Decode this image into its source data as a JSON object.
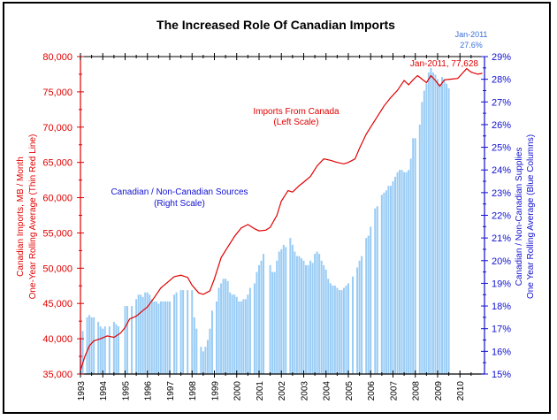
{
  "chart_data": {
    "type": "bar+line",
    "title": "The Increased Role Of Canadian Imports",
    "left_axis": {
      "label_line1": "Canadian Imports, MB / Month",
      "label_line2": "One-Year Rolling Average (Thin Red Line)",
      "range": [
        35000,
        80000
      ],
      "ticks": [
        "35,000",
        "40,000",
        "45,000",
        "50,000",
        "55,000",
        "60,000",
        "65,000",
        "70,000",
        "75,000",
        "80,000"
      ],
      "color": "#e00000"
    },
    "right_axis": {
      "label_line1": "Canadian / Non-Canadian Supplies",
      "label_line2": "One Year Rolling Average (Blue Columns)",
      "range": [
        15,
        29
      ],
      "ticks": [
        "15%",
        "16%",
        "17%",
        "18%",
        "19%",
        "20%",
        "21%",
        "22%",
        "23%",
        "24%",
        "25%",
        "26%",
        "27%",
        "28%",
        "29%"
      ],
      "color": "#1010d0"
    },
    "x_axis": {
      "range": [
        1993,
        2011.1
      ],
      "ticks": [
        "1993",
        "1994",
        "1995",
        "1996",
        "1997",
        "1998",
        "1999",
        "2000",
        "2001",
        "2002",
        "2003",
        "2004",
        "2005",
        "2006",
        "2007",
        "2008",
        "2009",
        "2010"
      ]
    },
    "annotations": {
      "line_label_1": "Imports From Canada",
      "line_label_2": "(Left Scale)",
      "bar_label_1": "Canadian / Non-Canadian Sources",
      "bar_label_2": "(Right Scale)",
      "line_end": "Jan-2011, 77,628",
      "bar_end_1": "Jan-2011",
      "bar_end_2": "27.6%"
    },
    "series": [
      {
        "name": "Imports From Canada (one-year rolling average)",
        "type": "line",
        "axis": "left",
        "color": "#e00000",
        "points": [
          [
            1993.0,
            35500
          ],
          [
            1993.2,
            37500
          ],
          [
            1993.4,
            39000
          ],
          [
            1993.6,
            39700
          ],
          [
            1993.9,
            40000
          ],
          [
            1994.2,
            40400
          ],
          [
            1994.5,
            40200
          ],
          [
            1994.8,
            40800
          ],
          [
            1995.0,
            41600
          ],
          [
            1995.2,
            42800
          ],
          [
            1995.5,
            43200
          ],
          [
            1995.8,
            44000
          ],
          [
            1996.0,
            44500
          ],
          [
            1996.3,
            45800
          ],
          [
            1996.6,
            47200
          ],
          [
            1996.9,
            48000
          ],
          [
            1997.2,
            48800
          ],
          [
            1997.5,
            49000
          ],
          [
            1997.8,
            48700
          ],
          [
            1998.0,
            47600
          ],
          [
            1998.3,
            46500
          ],
          [
            1998.5,
            46300
          ],
          [
            1998.8,
            46800
          ],
          [
            1999.0,
            48500
          ],
          [
            1999.3,
            51500
          ],
          [
            1999.6,
            53000
          ],
          [
            1999.9,
            54500
          ],
          [
            2000.2,
            55700
          ],
          [
            2000.5,
            56200
          ],
          [
            2000.8,
            55600
          ],
          [
            2001.0,
            55300
          ],
          [
            2001.3,
            55400
          ],
          [
            2001.5,
            55800
          ],
          [
            2001.8,
            57500
          ],
          [
            2002.0,
            59500
          ],
          [
            2002.3,
            61000
          ],
          [
            2002.5,
            60800
          ],
          [
            2002.8,
            61700
          ],
          [
            2003.0,
            62200
          ],
          [
            2003.3,
            63000
          ],
          [
            2003.6,
            64500
          ],
          [
            2003.9,
            65500
          ],
          [
            2004.2,
            65300
          ],
          [
            2004.5,
            65000
          ],
          [
            2004.8,
            64800
          ],
          [
            2005.0,
            65000
          ],
          [
            2005.3,
            65500
          ],
          [
            2005.5,
            67000
          ],
          [
            2005.8,
            69000
          ],
          [
            2006.0,
            70000
          ],
          [
            2006.3,
            71500
          ],
          [
            2006.6,
            73000
          ],
          [
            2006.9,
            74200
          ],
          [
            2007.2,
            75200
          ],
          [
            2007.5,
            76600
          ],
          [
            2007.7,
            76000
          ],
          [
            2007.9,
            76700
          ],
          [
            2008.1,
            77300
          ],
          [
            2008.3,
            76800
          ],
          [
            2008.5,
            76300
          ],
          [
            2008.7,
            77300
          ],
          [
            2008.9,
            76600
          ],
          [
            2009.1,
            75800
          ],
          [
            2009.3,
            76700
          ],
          [
            2009.6,
            76800
          ],
          [
            2009.9,
            76900
          ],
          [
            2010.1,
            77600
          ],
          [
            2010.3,
            78300
          ],
          [
            2010.5,
            77800
          ],
          [
            2010.8,
            77500
          ],
          [
            2011.0,
            77628
          ]
        ]
      },
      {
        "name": "Canadian / Non-Canadian Supplies (one-year rolling average)",
        "type": "bar",
        "axis": "right",
        "color": "#99ccf5",
        "points": [
          [
            1993.0,
            16.6
          ],
          [
            1993.1,
            16.9
          ],
          [
            1993.3,
            17.5
          ],
          [
            1993.4,
            17.6
          ],
          [
            1993.5,
            17.5
          ],
          [
            1993.6,
            17.5
          ],
          [
            1993.8,
            17.3
          ],
          [
            1993.9,
            17.1
          ],
          [
            1994.0,
            17.0
          ],
          [
            1994.1,
            17.1
          ],
          [
            1994.3,
            17.1
          ],
          [
            1994.5,
            17.3
          ],
          [
            1994.6,
            17.2
          ],
          [
            1994.7,
            17.1
          ],
          [
            1995.0,
            18.0
          ],
          [
            1995.1,
            18.0
          ],
          [
            1995.3,
            18.0
          ],
          [
            1995.5,
            18.3
          ],
          [
            1995.6,
            18.5
          ],
          [
            1995.7,
            18.5
          ],
          [
            1995.8,
            18.4
          ],
          [
            1995.9,
            18.6
          ],
          [
            1996.0,
            18.6
          ],
          [
            1996.1,
            18.5
          ],
          [
            1996.2,
            18.3
          ],
          [
            1996.3,
            18.2
          ],
          [
            1996.4,
            18.2
          ],
          [
            1996.5,
            18.1
          ],
          [
            1996.6,
            18.2
          ],
          [
            1996.7,
            18.2
          ],
          [
            1996.8,
            18.2
          ],
          [
            1996.9,
            18.2
          ],
          [
            1997.0,
            18.2
          ],
          [
            1997.2,
            18.5
          ],
          [
            1997.3,
            18.6
          ],
          [
            1997.5,
            18.7
          ],
          [
            1997.6,
            18.7
          ],
          [
            1997.8,
            18.7
          ],
          [
            1998.0,
            18.7
          ],
          [
            1998.1,
            17.5
          ],
          [
            1998.2,
            17.0
          ],
          [
            1998.4,
            16.2
          ],
          [
            1998.5,
            16.0
          ],
          [
            1998.6,
            16.2
          ],
          [
            1998.7,
            16.5
          ],
          [
            1998.8,
            17.0
          ],
          [
            1998.9,
            17.8
          ],
          [
            1999.1,
            18.2
          ],
          [
            1999.2,
            18.8
          ],
          [
            1999.3,
            19.0
          ],
          [
            1999.4,
            19.2
          ],
          [
            1999.5,
            19.2
          ],
          [
            1999.6,
            19.1
          ],
          [
            1999.7,
            18.6
          ],
          [
            1999.8,
            18.5
          ],
          [
            1999.9,
            18.5
          ],
          [
            2000.0,
            18.4
          ],
          [
            2000.1,
            18.2
          ],
          [
            2000.2,
            18.2
          ],
          [
            2000.3,
            18.3
          ],
          [
            2000.4,
            18.3
          ],
          [
            2000.5,
            18.5
          ],
          [
            2000.6,
            18.8
          ],
          [
            2000.8,
            19.0
          ],
          [
            2000.9,
            19.5
          ],
          [
            2001.0,
            19.8
          ],
          [
            2001.1,
            20.0
          ],
          [
            2001.2,
            20.3
          ],
          [
            2001.5,
            19.8
          ],
          [
            2001.6,
            19.5
          ],
          [
            2001.7,
            19.5
          ],
          [
            2001.8,
            20.0
          ],
          [
            2001.9,
            20.4
          ],
          [
            2002.0,
            20.5
          ],
          [
            2002.1,
            20.7
          ],
          [
            2002.2,
            20.6
          ],
          [
            2002.4,
            21.0
          ],
          [
            2002.5,
            20.7
          ],
          [
            2002.6,
            20.4
          ],
          [
            2002.7,
            20.2
          ],
          [
            2002.8,
            20.2
          ],
          [
            2002.9,
            20.1
          ],
          [
            2003.0,
            20.0
          ],
          [
            2003.1,
            19.8
          ],
          [
            2003.2,
            19.8
          ],
          [
            2003.3,
            20.0
          ],
          [
            2003.4,
            19.9
          ],
          [
            2003.5,
            20.3
          ],
          [
            2003.6,
            20.4
          ],
          [
            2003.7,
            20.3
          ],
          [
            2003.8,
            20.0
          ],
          [
            2003.9,
            19.8
          ],
          [
            2004.0,
            19.6
          ],
          [
            2004.1,
            19.2
          ],
          [
            2004.2,
            19.0
          ],
          [
            2004.3,
            18.9
          ],
          [
            2004.4,
            18.9
          ],
          [
            2004.5,
            18.8
          ],
          [
            2004.6,
            18.7
          ],
          [
            2004.7,
            18.7
          ],
          [
            2004.8,
            18.8
          ],
          [
            2004.9,
            18.9
          ],
          [
            2005.0,
            19.0
          ],
          [
            2005.2,
            19.3
          ],
          [
            2005.4,
            19.7
          ],
          [
            2005.5,
            20.0
          ],
          [
            2005.6,
            20.2
          ],
          [
            2005.8,
            21.0
          ],
          [
            2005.9,
            21.1
          ],
          [
            2006.0,
            21.5
          ],
          [
            2006.2,
            22.3
          ],
          [
            2006.3,
            22.4
          ],
          [
            2006.5,
            22.9
          ],
          [
            2006.6,
            23.0
          ],
          [
            2006.7,
            23.1
          ],
          [
            2006.8,
            23.3
          ],
          [
            2006.9,
            23.3
          ],
          [
            2007.0,
            23.5
          ],
          [
            2007.1,
            23.7
          ],
          [
            2007.2,
            23.9
          ],
          [
            2007.3,
            24.0
          ],
          [
            2007.4,
            24.0
          ],
          [
            2007.5,
            23.9
          ],
          [
            2007.6,
            23.9
          ],
          [
            2007.7,
            24.0
          ],
          [
            2007.8,
            24.5
          ],
          [
            2007.9,
            25.4
          ],
          [
            2008.0,
            25.4
          ],
          [
            2008.2,
            26.0
          ],
          [
            2008.3,
            27.0
          ],
          [
            2008.4,
            27.5
          ],
          [
            2008.5,
            27.8
          ],
          [
            2008.6,
            28.3
          ],
          [
            2008.7,
            28.5
          ],
          [
            2008.8,
            28.3
          ],
          [
            2008.9,
            28.2
          ],
          [
            2009.0,
            28.0
          ],
          [
            2009.1,
            27.8
          ],
          [
            2009.2,
            28.1
          ],
          [
            2009.3,
            28.0
          ],
          [
            2009.4,
            27.8
          ],
          [
            2009.5,
            27.6
          ]
        ]
      }
    ]
  }
}
